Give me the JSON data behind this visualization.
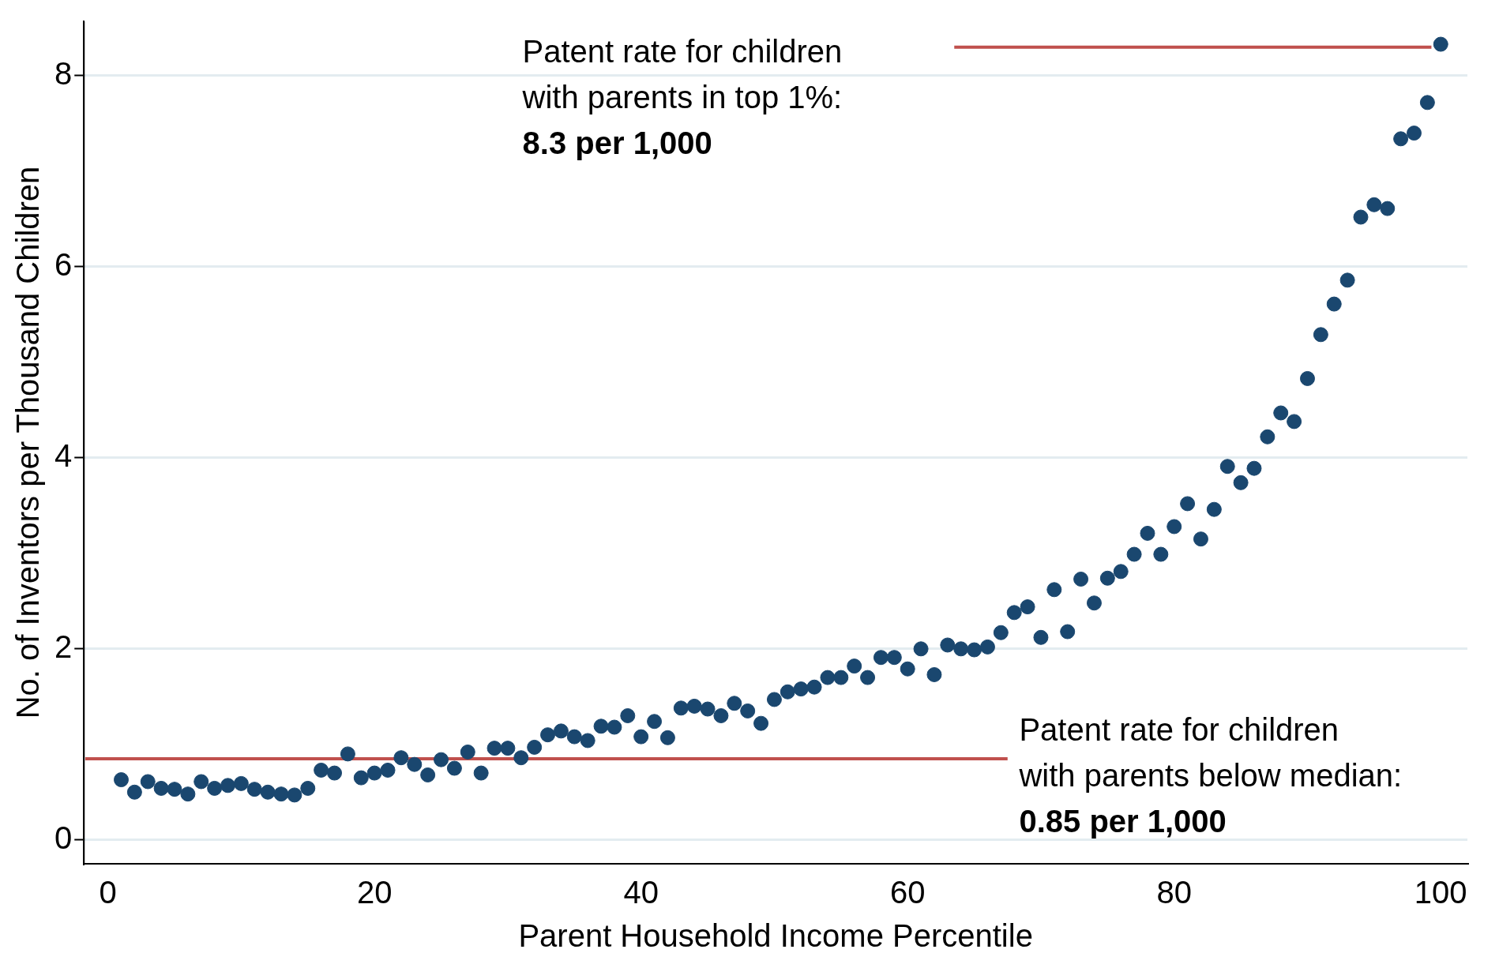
{
  "chart_data": {
    "type": "scatter",
    "xlabel": "Parent Household Income Percentile",
    "ylabel": "No. of Inventors per Thousand Children",
    "xlim": [
      -1.8,
      102
    ],
    "ylim": [
      -0.25,
      8.57
    ],
    "xticks": [
      0,
      20,
      40,
      60,
      80,
      100
    ],
    "yticks": [
      0,
      2,
      4,
      6,
      8
    ],
    "grid": "y",
    "legend": false,
    "marker": "circle",
    "series": [
      {
        "color": "#1a476f",
        "x": [
          1,
          2,
          3,
          4,
          5,
          6,
          7,
          8,
          9,
          10,
          11,
          12,
          13,
          14,
          15,
          16,
          17,
          18,
          19,
          20,
          21,
          22,
          23,
          24,
          25,
          26,
          27,
          28,
          29,
          30,
          31,
          32,
          33,
          34,
          35,
          36,
          37,
          38,
          39,
          40,
          41,
          42,
          43,
          44,
          45,
          46,
          47,
          48,
          49,
          50,
          51,
          52,
          53,
          54,
          55,
          56,
          57,
          58,
          59,
          60,
          61,
          62,
          63,
          64,
          65,
          66,
          67,
          68,
          69,
          70,
          71,
          72,
          73,
          74,
          75,
          76,
          77,
          78,
          79,
          80,
          81,
          82,
          83,
          84,
          85,
          86,
          87,
          88,
          89,
          90,
          91,
          92,
          93,
          94,
          95,
          96,
          97,
          98,
          99,
          100
        ],
        "values": [
          0.63,
          0.5,
          0.61,
          0.54,
          0.53,
          0.48,
          0.61,
          0.54,
          0.57,
          0.59,
          0.53,
          0.5,
          0.48,
          0.47,
          0.54,
          0.73,
          0.7,
          0.9,
          0.65,
          0.7,
          0.73,
          0.86,
          0.79,
          0.68,
          0.84,
          0.75,
          0.92,
          0.7,
          0.96,
          0.96,
          0.86,
          0.97,
          1.1,
          1.14,
          1.08,
          1.04,
          1.19,
          1.18,
          1.3,
          1.08,
          1.24,
          1.07,
          1.38,
          1.4,
          1.37,
          1.3,
          1.43,
          1.35,
          1.22,
          1.47,
          1.55,
          1.58,
          1.6,
          1.7,
          1.7,
          1.82,
          1.7,
          1.91,
          1.91,
          1.79,
          2.0,
          1.73,
          2.04,
          2.0,
          1.99,
          2.02,
          2.17,
          2.38,
          2.44,
          2.12,
          2.62,
          2.18,
          2.73,
          2.48,
          2.74,
          2.81,
          2.99,
          3.21,
          2.99,
          3.28,
          3.52,
          3.15,
          3.46,
          3.91,
          3.74,
          3.89,
          4.22,
          4.47,
          4.38,
          4.83,
          5.29,
          5.61,
          5.86,
          6.52,
          6.65,
          6.61,
          7.34,
          7.4,
          7.72,
          8.33
        ]
      },
      {
        "type": "line",
        "marker": "none",
        "color": "#c0504d",
        "x": [
          63.5,
          99.3
        ],
        "values": [
          8.3,
          8.3
        ]
      },
      {
        "type": "line",
        "marker": "none",
        "color": "#c0504d",
        "x": [
          -1.7,
          67.5
        ],
        "values": [
          0.85,
          0.85
        ]
      }
    ],
    "annotations": [
      "Patent rate for children\nwith parents in top 1%:\n8.3 per 1,000",
      "Patent rate for children\nwith parents below median:\n0.85 per 1,000"
    ]
  }
}
